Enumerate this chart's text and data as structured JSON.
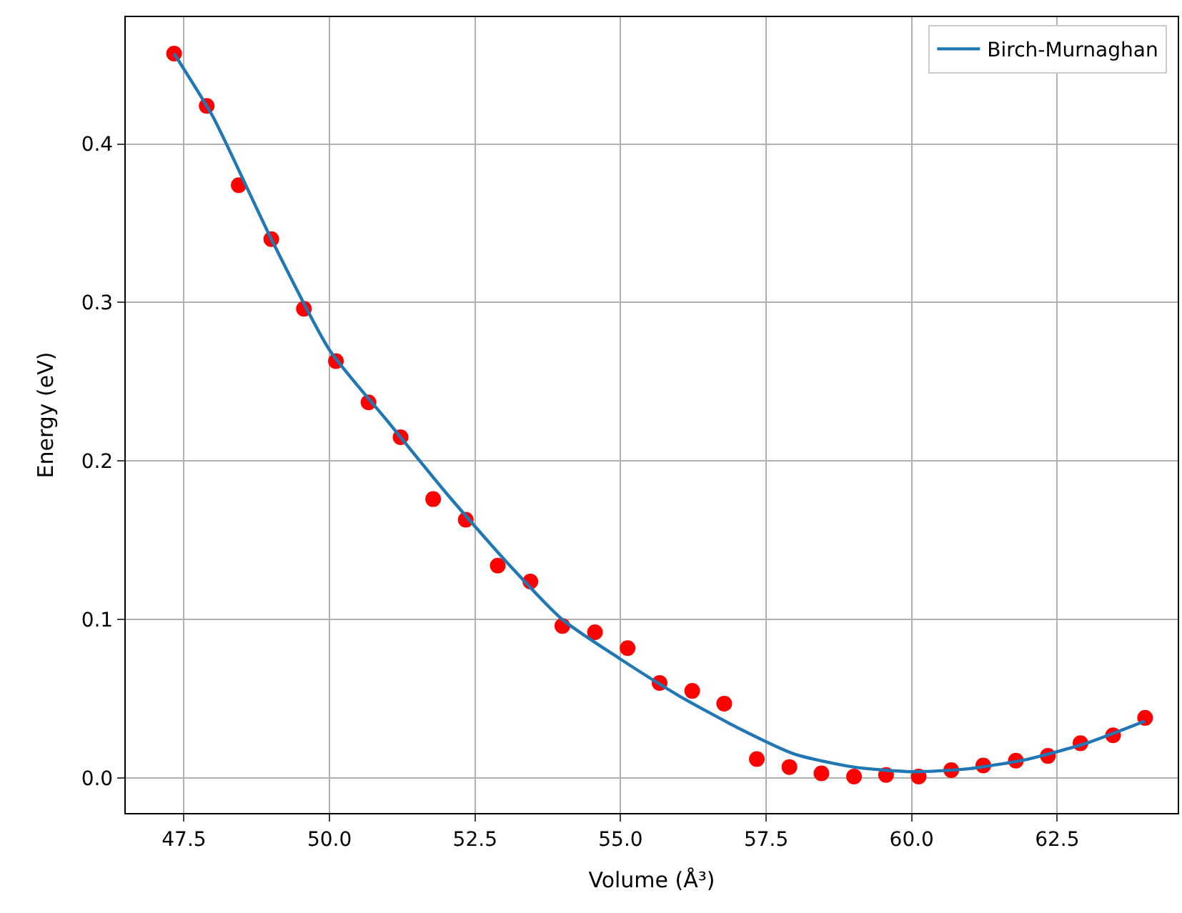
{
  "chart_data": {
    "type": "scatter",
    "xlabel": "Volume (Å³)",
    "ylabel": "Energy (eV)",
    "xlim": [
      46.5,
      64.57
    ],
    "ylim": [
      -0.022,
      0.48
    ],
    "xticks": [
      {
        "value": 47.5,
        "label": "47.5"
      },
      {
        "value": 50,
        "label": "50.0"
      },
      {
        "value": 52.5,
        "label": "52.5"
      },
      {
        "value": 55,
        "label": "55.0"
      },
      {
        "value": 57.5,
        "label": "57.5"
      },
      {
        "value": 60,
        "label": "60.0"
      },
      {
        "value": 62.5,
        "label": "62.5"
      }
    ],
    "yticks": [
      {
        "value": 0,
        "label": "0.0"
      },
      {
        "value": 0.1,
        "label": "0.1"
      },
      {
        "value": 0.2,
        "label": "0.2"
      },
      {
        "value": 0.3,
        "label": "0.3"
      },
      {
        "value": 0.4,
        "label": "0.4"
      }
    ],
    "grid": true,
    "legend": "top right",
    "series": [
      {
        "marker": "circle",
        "color": "#ff0000",
        "x": [
          47.33,
          47.89,
          48.44,
          49.0,
          49.56,
          50.11,
          50.67,
          51.22,
          51.78,
          52.34,
          52.89,
          53.45,
          54.0,
          54.56,
          55.12,
          55.67,
          56.23,
          56.78,
          57.34,
          57.9,
          58.45,
          59.01,
          59.56,
          60.12,
          60.68,
          61.23,
          61.79,
          62.34,
          62.9,
          63.46,
          64.01
        ],
        "values": [
          0.457,
          0.424,
          0.374,
          0.34,
          0.296,
          0.263,
          0.237,
          0.215,
          0.176,
          0.163,
          0.134,
          0.124,
          0.096,
          0.092,
          0.082,
          0.06,
          0.055,
          0.047,
          0.012,
          0.007,
          0.003,
          0.001,
          0.002,
          0.001,
          0.005,
          0.008,
          0.011,
          0.014,
          0.022,
          0.027,
          0.038
        ]
      },
      {
        "type": "line",
        "name": "Birch-Murnaghan",
        "color": "#1f77b4",
        "marker": "none",
        "line_style": "solid",
        "x": [
          47.33,
          48,
          49,
          50,
          51,
          52,
          53,
          54,
          55,
          56,
          57,
          58,
          59,
          60,
          61,
          62,
          63,
          64.01
        ],
        "values": [
          0.457,
          0.417,
          0.34,
          0.27,
          0.225,
          0.18,
          0.138,
          0.1,
          0.075,
          0.052,
          0.032,
          0.015,
          0.007,
          0.004,
          0.006,
          0.012,
          0.022,
          0.036
        ]
      }
    ]
  }
}
